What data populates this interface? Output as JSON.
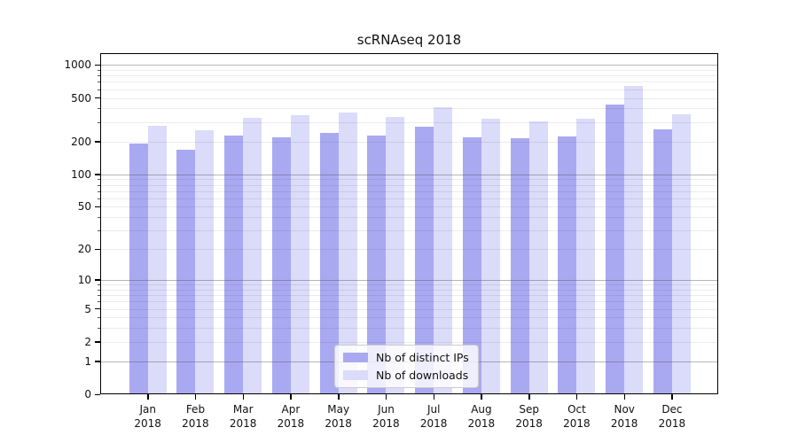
{
  "chart_data": {
    "type": "bar",
    "title": "scRNAseq 2018",
    "categories": [
      "Jan\n2018",
      "Feb\n2018",
      "Mar\n2018",
      "Apr\n2018",
      "May\n2018",
      "Jun\n2018",
      "Jul\n2018",
      "Aug\n2018",
      "Sep\n2018",
      "Oct\n2018",
      "Nov\n2018",
      "Dec\n2018"
    ],
    "series": [
      {
        "name": "Nb of distinct IPs",
        "color": "#a9a9f2",
        "values": [
          192,
          167,
          226,
          218,
          239,
          227,
          271,
          219,
          214,
          222,
          434,
          258
        ]
      },
      {
        "name": "Nb of downloads",
        "color": "#dbdbfa",
        "values": [
          278,
          255,
          331,
          348,
          370,
          335,
          411,
          321,
          305,
          321,
          646,
          356
        ]
      }
    ],
    "yscale": "log1p",
    "yticks": [
      0,
      1,
      2,
      5,
      10,
      20,
      50,
      100,
      200,
      500,
      1000
    ],
    "minor_gridlines": [
      2,
      3,
      4,
      5,
      6,
      7,
      8,
      9,
      20,
      30,
      40,
      50,
      60,
      70,
      80,
      90,
      200,
      300,
      400,
      500,
      600,
      700,
      800,
      900
    ],
    "major_gridlines": [
      1,
      10,
      100,
      1000
    ],
    "ylim": [
      0,
      1280
    ],
    "xlabel": "",
    "ylabel": "",
    "grid": "horizontal",
    "legend_position": "lower center",
    "legend_labels": [
      "Nb of distinct IPs",
      "Nb of downloads"
    ]
  }
}
